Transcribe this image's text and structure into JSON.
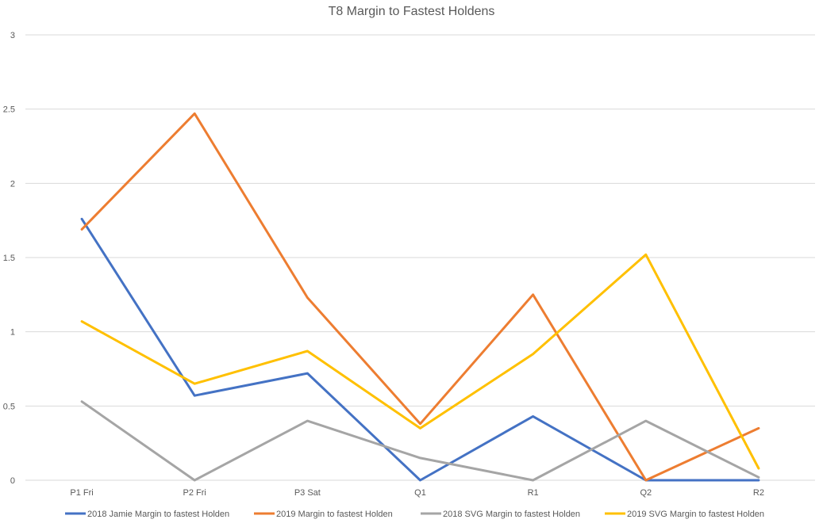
{
  "chart_data": {
    "type": "line",
    "title": "T8 Margin to Fastest Holdens",
    "xlabel": "",
    "ylabel": "",
    "categories": [
      "P1 Fri",
      "P2 Fri",
      "P3 Sat",
      "Q1",
      "R1",
      "Q2",
      "R2"
    ],
    "ylim": [
      0,
      3
    ],
    "yticks": [
      "0",
      "0.5",
      "1",
      "1.5",
      "2",
      "2.5",
      "3"
    ],
    "grid": true,
    "legend_position": "bottom",
    "series": [
      {
        "name": "2018 Jamie Margin to fastest Holden",
        "color": "#4472c4",
        "values": [
          1.76,
          0.57,
          0.72,
          0.0,
          0.43,
          0.0,
          0.0
        ]
      },
      {
        "name": "2019 Margin to fastest Holden",
        "color": "#ed7d31",
        "values": [
          1.69,
          2.47,
          1.23,
          0.38,
          1.25,
          0.0,
          0.35
        ]
      },
      {
        "name": "2018 SVG Margin to fastest Holden",
        "color": "#a5a5a5",
        "values": [
          0.53,
          0.0,
          0.4,
          0.15,
          0.0,
          0.4,
          0.02
        ]
      },
      {
        "name": "2019 SVG Margin to fastest Holden",
        "color": "#ffc000",
        "values": [
          1.07,
          0.65,
          0.87,
          0.35,
          0.85,
          1.52,
          0.08
        ]
      }
    ]
  }
}
